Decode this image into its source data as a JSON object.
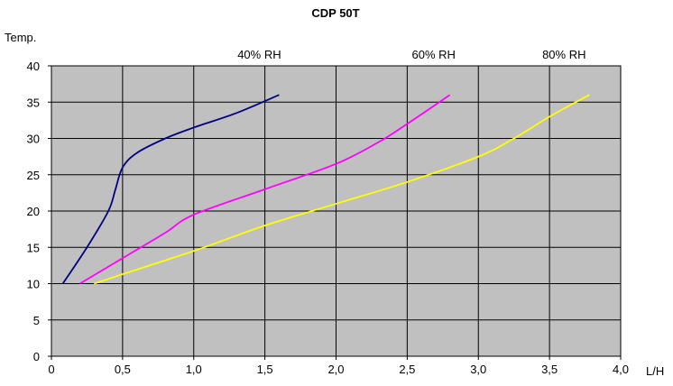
{
  "chart_data": {
    "type": "line",
    "title": "CDP 50T",
    "xlabel": "L/H",
    "ylabel": "Temp.",
    "xlim": [
      0,
      4.0
    ],
    "ylim": [
      0,
      40
    ],
    "x_ticks": [
      "0",
      "0,5",
      "1,0",
      "1,5",
      "2,0",
      "2,5",
      "3,0",
      "3,5",
      "4,0"
    ],
    "y_ticks": [
      "0",
      "5",
      "10",
      "15",
      "20",
      "25",
      "30",
      "35",
      "40"
    ],
    "grid": true,
    "plot_background": "#c0c0c0",
    "series": [
      {
        "name": "40% RH",
        "color": "#000080",
        "points": [
          [
            0.08,
            10
          ],
          [
            0.25,
            15
          ],
          [
            0.4,
            20
          ],
          [
            0.45,
            23
          ],
          [
            0.5,
            26
          ],
          [
            0.6,
            28
          ],
          [
            0.8,
            30
          ],
          [
            1.0,
            31.5
          ],
          [
            1.3,
            33.5
          ],
          [
            1.6,
            36
          ]
        ]
      },
      {
        "name": "60% RH",
        "color": "#ff00ff",
        "points": [
          [
            0.2,
            10
          ],
          [
            0.5,
            13.5
          ],
          [
            0.8,
            17
          ],
          [
            1.0,
            19.5
          ],
          [
            1.5,
            23
          ],
          [
            2.0,
            26.5
          ],
          [
            2.3,
            29.5
          ],
          [
            2.5,
            32
          ],
          [
            2.8,
            36
          ]
        ]
      },
      {
        "name": "80% RH",
        "color": "#ffff00",
        "points": [
          [
            0.3,
            10
          ],
          [
            0.5,
            11.3
          ],
          [
            1.0,
            14.5
          ],
          [
            1.5,
            18
          ],
          [
            2.0,
            21
          ],
          [
            2.5,
            24
          ],
          [
            3.0,
            27.5
          ],
          [
            3.25,
            30
          ],
          [
            3.5,
            33
          ],
          [
            3.78,
            36
          ]
        ]
      }
    ]
  }
}
